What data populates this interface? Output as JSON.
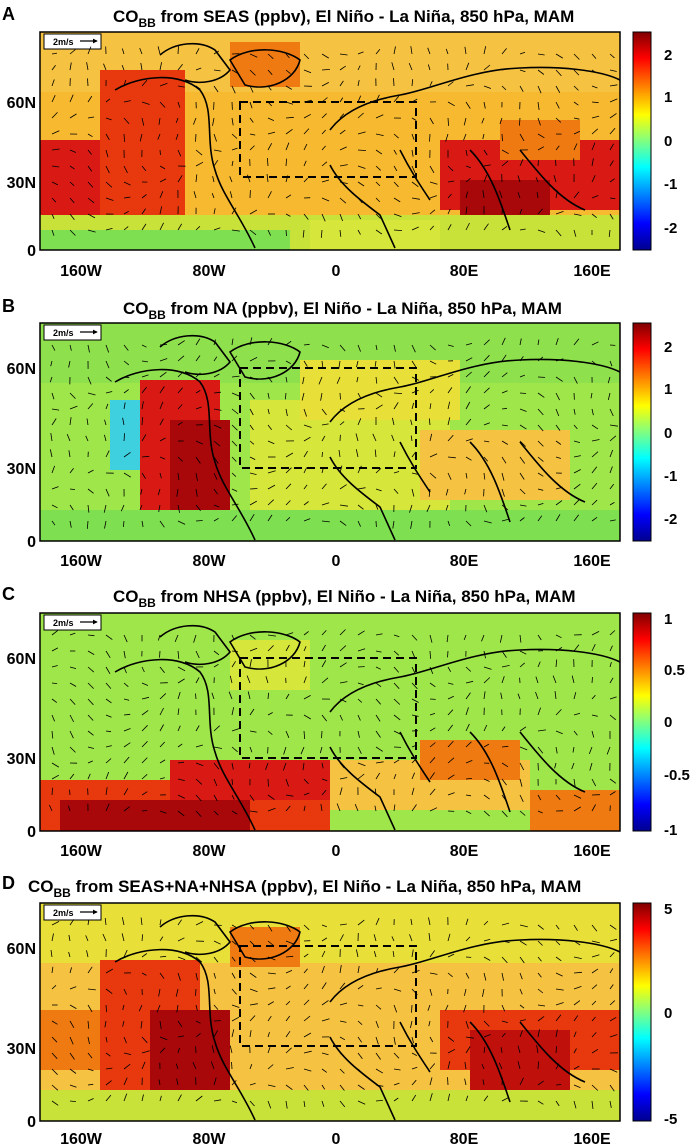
{
  "panels": [
    {
      "letter": "A",
      "title_pre": "CO",
      "title_sub": "BB",
      "title_post": " from SEAS (ppbv), El Niño - La Niña, 850 hPa, MAM",
      "wind_ref": "2m/s",
      "colorbar_ticks": [
        "2",
        "1",
        "0",
        "-1",
        "-2"
      ],
      "colorbar_range": [
        -2.5,
        2.5
      ]
    },
    {
      "letter": "B",
      "title_pre": "CO",
      "title_sub": "BB",
      "title_post": " from NA (ppbv), El Niño - La Niña, 850 hPa, MAM",
      "wind_ref": "2m/s",
      "colorbar_ticks": [
        "2",
        "1",
        "0",
        "-1",
        "-2"
      ],
      "colorbar_range": [
        -2.5,
        2.5
      ]
    },
    {
      "letter": "C",
      "title_pre": "CO",
      "title_sub": "BB",
      "title_post": " from NHSA (ppbv), El Niño - La Niña, 850 hPa, MAM",
      "wind_ref": "2m/s",
      "colorbar_ticks": [
        "1",
        "0.5",
        "0",
        "-0.5",
        "-1"
      ],
      "colorbar_range": [
        -1,
        1
      ]
    },
    {
      "letter": "D",
      "title_pre": "CO",
      "title_sub": "BB",
      "title_post": " from SEAS+NA+NHSA (ppbv), El Niño - La Niña, 850 hPa, MAM",
      "wind_ref": "2m/s",
      "colorbar_ticks": [
        "5",
        "0",
        "-5"
      ],
      "colorbar_range": [
        -5,
        5
      ]
    }
  ],
  "axes": {
    "x_ticks": [
      "160W",
      "80W",
      "0",
      "80E",
      "160E"
    ],
    "y_ticks": [
      "60N",
      "30N",
      "0"
    ]
  },
  "colors": {
    "colormap": [
      "#00008f",
      "#0000ff",
      "#0080ff",
      "#00ffff",
      "#80ff80",
      "#ffff00",
      "#ff8000",
      "#ff0000",
      "#800000"
    ],
    "coastline": "#000000",
    "background_field": "#f5c242"
  },
  "map_region": {
    "lon_range": [
      "180W",
      "180E"
    ],
    "lat_range": [
      "0",
      "90N"
    ]
  },
  "highlight_box": {
    "lon": [
      "40W",
      "50E"
    ],
    "lat": [
      "30N",
      "60N"
    ]
  }
}
